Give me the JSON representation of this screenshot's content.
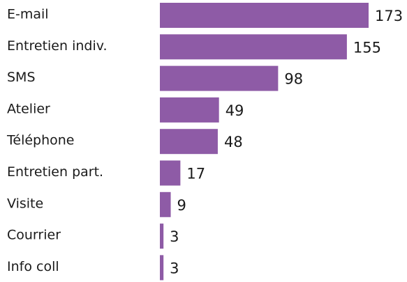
{
  "chart_data": {
    "type": "bar",
    "orientation": "horizontal",
    "categories": [
      "E-mail",
      "Entretien indiv.",
      "SMS",
      "Atelier",
      "Téléphone",
      "Entretien part.",
      "Visite",
      "Courrier",
      "Info coll"
    ],
    "values": [
      173,
      155,
      98,
      49,
      48,
      17,
      9,
      3,
      3
    ],
    "color": "#8e5ba6"
  }
}
